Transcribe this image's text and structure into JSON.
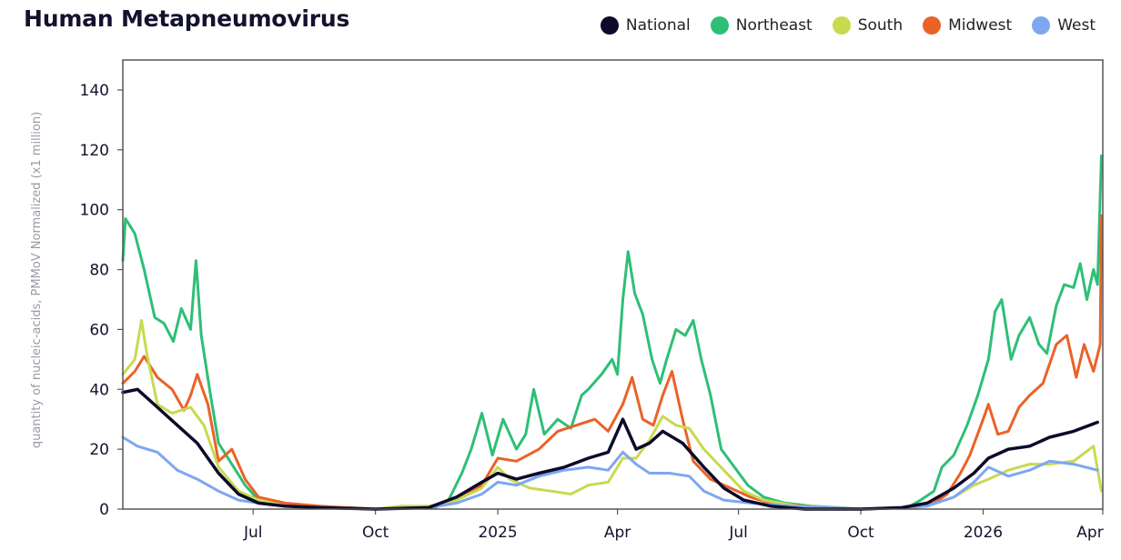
{
  "chart_data": {
    "type": "line",
    "title": "Human Metapneumovirus",
    "xlabel": "",
    "ylabel": "quantity of nucleic-acids, PMMoV Normalized (x1 million)",
    "ylim": [
      0,
      150
    ],
    "y_ticks": [
      0,
      20,
      40,
      60,
      80,
      100,
      120,
      140
    ],
    "x_range": [
      "2024-03-25",
      "2026-04-01"
    ],
    "x_ticks": [
      {
        "label": "Jul",
        "date": "2024-07-01"
      },
      {
        "label": "Oct",
        "date": "2024-10-01"
      },
      {
        "label": "2025",
        "date": "2025-01-01"
      },
      {
        "label": "Apr",
        "date": "2025-04-01"
      },
      {
        "label": "Jul",
        "date": "2025-07-01"
      },
      {
        "label": "Oct",
        "date": "2025-10-01"
      },
      {
        "label": "2026",
        "date": "2026-01-01"
      },
      {
        "label": "Apr",
        "date": "2026-04-01"
      }
    ],
    "legend_position": "top-right",
    "series": [
      {
        "name": "National",
        "color": "#0d0a2b",
        "points": [
          [
            "2024-03-25",
            39
          ],
          [
            "2024-04-05",
            40
          ],
          [
            "2024-04-20",
            34
          ],
          [
            "2024-05-05",
            28
          ],
          [
            "2024-05-20",
            22
          ],
          [
            "2024-06-05",
            12
          ],
          [
            "2024-06-20",
            5
          ],
          [
            "2024-07-05",
            2
          ],
          [
            "2024-07-25",
            1
          ],
          [
            "2024-08-20",
            0.5
          ],
          [
            "2024-10-01",
            0
          ],
          [
            "2024-11-10",
            0.5
          ],
          [
            "2024-12-01",
            4
          ],
          [
            "2024-12-20",
            9
          ],
          [
            "2025-01-01",
            12
          ],
          [
            "2025-01-15",
            10
          ],
          [
            "2025-02-01",
            12
          ],
          [
            "2025-02-20",
            14
          ],
          [
            "2025-03-10",
            17
          ],
          [
            "2025-03-25",
            19
          ],
          [
            "2025-04-05",
            30
          ],
          [
            "2025-04-15",
            20
          ],
          [
            "2025-04-25",
            22
          ],
          [
            "2025-05-05",
            26
          ],
          [
            "2025-05-20",
            22
          ],
          [
            "2025-06-05",
            14
          ],
          [
            "2025-06-20",
            7
          ],
          [
            "2025-07-05",
            3
          ],
          [
            "2025-07-25",
            1
          ],
          [
            "2025-08-20",
            0
          ],
          [
            "2025-10-01",
            0
          ],
          [
            "2025-11-01",
            0.5
          ],
          [
            "2025-11-20",
            2
          ],
          [
            "2025-12-10",
            7
          ],
          [
            "2025-12-25",
            12
          ],
          [
            "2026-01-05",
            17
          ],
          [
            "2026-01-20",
            20
          ],
          [
            "2026-02-05",
            21
          ],
          [
            "2026-02-20",
            24
          ],
          [
            "2026-03-10",
            26
          ],
          [
            "2026-03-28",
            29
          ]
        ]
      },
      {
        "name": "Northeast",
        "color": "#2ebf76",
        "points": [
          [
            "2024-03-25",
            83
          ],
          [
            "2024-03-27",
            97
          ],
          [
            "2024-04-03",
            92
          ],
          [
            "2024-04-10",
            80
          ],
          [
            "2024-04-18",
            64
          ],
          [
            "2024-04-25",
            62
          ],
          [
            "2024-05-02",
            56
          ],
          [
            "2024-05-08",
            67
          ],
          [
            "2024-05-15",
            60
          ],
          [
            "2024-05-19",
            83
          ],
          [
            "2024-05-23",
            58
          ],
          [
            "2024-05-30",
            38
          ],
          [
            "2024-06-05",
            22
          ],
          [
            "2024-06-15",
            15
          ],
          [
            "2024-06-25",
            8
          ],
          [
            "2024-07-05",
            3
          ],
          [
            "2024-07-25",
            1
          ],
          [
            "2024-08-20",
            0.5
          ],
          [
            "2024-10-01",
            0
          ],
          [
            "2024-11-15",
            0.5
          ],
          [
            "2024-11-25",
            3
          ],
          [
            "2024-12-05",
            12
          ],
          [
            "2024-12-12",
            20
          ],
          [
            "2024-12-20",
            32
          ],
          [
            "2024-12-28",
            18
          ],
          [
            "2025-01-05",
            30
          ],
          [
            "2025-01-15",
            20
          ],
          [
            "2025-01-22",
            25
          ],
          [
            "2025-01-28",
            40
          ],
          [
            "2025-02-05",
            25
          ],
          [
            "2025-02-15",
            30
          ],
          [
            "2025-02-25",
            27
          ],
          [
            "2025-03-05",
            38
          ],
          [
            "2025-03-10",
            40
          ],
          [
            "2025-03-20",
            45
          ],
          [
            "2025-03-28",
            50
          ],
          [
            "2025-04-01",
            45
          ],
          [
            "2025-04-05",
            70
          ],
          [
            "2025-04-09",
            86
          ],
          [
            "2025-04-14",
            72
          ],
          [
            "2025-04-20",
            65
          ],
          [
            "2025-04-27",
            50
          ],
          [
            "2025-05-03",
            42
          ],
          [
            "2025-05-08",
            50
          ],
          [
            "2025-05-15",
            60
          ],
          [
            "2025-05-22",
            58
          ],
          [
            "2025-05-28",
            63
          ],
          [
            "2025-06-03",
            50
          ],
          [
            "2025-06-10",
            38
          ],
          [
            "2025-06-18",
            20
          ],
          [
            "2025-06-28",
            14
          ],
          [
            "2025-07-08",
            8
          ],
          [
            "2025-07-20",
            4
          ],
          [
            "2025-08-05",
            2
          ],
          [
            "2025-08-25",
            1
          ],
          [
            "2025-09-15",
            0.5
          ],
          [
            "2025-10-01",
            0
          ],
          [
            "2025-11-05",
            0.5
          ],
          [
            "2025-11-15",
            3
          ],
          [
            "2025-11-25",
            6
          ],
          [
            "2025-12-01",
            14
          ],
          [
            "2025-12-10",
            18
          ],
          [
            "2025-12-20",
            28
          ],
          [
            "2025-12-28",
            38
          ],
          [
            "2026-01-05",
            50
          ],
          [
            "2026-01-10",
            66
          ],
          [
            "2026-01-15",
            70
          ],
          [
            "2026-01-22",
            50
          ],
          [
            "2026-01-28",
            58
          ],
          [
            "2026-02-05",
            64
          ],
          [
            "2026-02-12",
            55
          ],
          [
            "2026-02-18",
            52
          ],
          [
            "2026-02-25",
            68
          ],
          [
            "2026-03-03",
            75
          ],
          [
            "2026-03-10",
            74
          ],
          [
            "2026-03-15",
            82
          ],
          [
            "2026-03-20",
            70
          ],
          [
            "2026-03-25",
            80
          ],
          [
            "2026-03-28",
            75
          ],
          [
            "2026-03-31",
            118
          ]
        ]
      },
      {
        "name": "South",
        "color": "#c8da4f",
        "points": [
          [
            "2024-03-25",
            45
          ],
          [
            "2024-04-03",
            50
          ],
          [
            "2024-04-08",
            63
          ],
          [
            "2024-04-12",
            52
          ],
          [
            "2024-04-20",
            35
          ],
          [
            "2024-05-01",
            32
          ],
          [
            "2024-05-15",
            34
          ],
          [
            "2024-05-25",
            28
          ],
          [
            "2024-06-05",
            14
          ],
          [
            "2024-06-20",
            6
          ],
          [
            "2024-07-05",
            3
          ],
          [
            "2024-07-25",
            1
          ],
          [
            "2024-08-20",
            0.5
          ],
          [
            "2024-10-01",
            0
          ],
          [
            "2024-10-20",
            1
          ],
          [
            "2024-11-10",
            1
          ],
          [
            "2024-12-01",
            3
          ],
          [
            "2024-12-20",
            7
          ],
          [
            "2025-01-01",
            14
          ],
          [
            "2025-01-10",
            10
          ],
          [
            "2025-01-25",
            7
          ],
          [
            "2025-02-10",
            6
          ],
          [
            "2025-02-25",
            5
          ],
          [
            "2025-03-10",
            8
          ],
          [
            "2025-03-25",
            9
          ],
          [
            "2025-04-05",
            17
          ],
          [
            "2025-04-15",
            17
          ],
          [
            "2025-04-25",
            23
          ],
          [
            "2025-05-05",
            31
          ],
          [
            "2025-05-15",
            28
          ],
          [
            "2025-05-25",
            27
          ],
          [
            "2025-06-05",
            20
          ],
          [
            "2025-06-20",
            13
          ],
          [
            "2025-07-05",
            6
          ],
          [
            "2025-07-20",
            3
          ],
          [
            "2025-08-15",
            1
          ],
          [
            "2025-09-15",
            0.5
          ],
          [
            "2025-10-01",
            0
          ],
          [
            "2025-11-01",
            0.5
          ],
          [
            "2025-11-20",
            1
          ],
          [
            "2025-12-10",
            4
          ],
          [
            "2025-12-25",
            8
          ],
          [
            "2026-01-05",
            10
          ],
          [
            "2026-01-20",
            13
          ],
          [
            "2026-02-05",
            15
          ],
          [
            "2026-02-20",
            15
          ],
          [
            "2026-03-10",
            16
          ],
          [
            "2026-03-25",
            21
          ],
          [
            "2026-03-31",
            6
          ]
        ]
      },
      {
        "name": "Midwest",
        "color": "#ea6228",
        "points": [
          [
            "2024-03-25",
            42
          ],
          [
            "2024-04-03",
            46
          ],
          [
            "2024-04-10",
            51
          ],
          [
            "2024-04-20",
            44
          ],
          [
            "2024-05-01",
            40
          ],
          [
            "2024-05-10",
            33
          ],
          [
            "2024-05-15",
            38
          ],
          [
            "2024-05-20",
            45
          ],
          [
            "2024-05-28",
            35
          ],
          [
            "2024-06-05",
            16
          ],
          [
            "2024-06-15",
            20
          ],
          [
            "2024-06-25",
            10
          ],
          [
            "2024-07-05",
            4
          ],
          [
            "2024-07-25",
            2
          ],
          [
            "2024-08-20",
            1
          ],
          [
            "2024-10-01",
            0
          ],
          [
            "2024-11-10",
            0.5
          ],
          [
            "2024-11-25",
            2
          ],
          [
            "2024-12-05",
            4
          ],
          [
            "2024-12-20",
            8
          ],
          [
            "2025-01-01",
            17
          ],
          [
            "2025-01-15",
            16
          ],
          [
            "2025-02-01",
            20
          ],
          [
            "2025-02-15",
            26
          ],
          [
            "2025-03-01",
            28
          ],
          [
            "2025-03-15",
            30
          ],
          [
            "2025-03-25",
            26
          ],
          [
            "2025-04-05",
            35
          ],
          [
            "2025-04-12",
            44
          ],
          [
            "2025-04-20",
            30
          ],
          [
            "2025-04-28",
            28
          ],
          [
            "2025-05-05",
            38
          ],
          [
            "2025-05-12",
            46
          ],
          [
            "2025-05-20",
            30
          ],
          [
            "2025-05-28",
            16
          ],
          [
            "2025-06-10",
            10
          ],
          [
            "2025-06-25",
            7
          ],
          [
            "2025-07-10",
            4
          ],
          [
            "2025-07-25",
            2
          ],
          [
            "2025-08-20",
            1
          ],
          [
            "2025-10-01",
            0
          ],
          [
            "2025-11-10",
            0.5
          ],
          [
            "2025-11-25",
            2
          ],
          [
            "2025-12-05",
            5
          ],
          [
            "2025-12-15",
            12
          ],
          [
            "2025-12-22",
            18
          ],
          [
            "2026-01-01",
            30
          ],
          [
            "2026-01-05",
            35
          ],
          [
            "2026-01-12",
            25
          ],
          [
            "2026-01-20",
            26
          ],
          [
            "2026-01-28",
            34
          ],
          [
            "2026-02-05",
            38
          ],
          [
            "2026-02-15",
            42
          ],
          [
            "2026-02-25",
            55
          ],
          [
            "2026-03-05",
            58
          ],
          [
            "2026-03-12",
            44
          ],
          [
            "2026-03-18",
            55
          ],
          [
            "2026-03-25",
            46
          ],
          [
            "2026-03-30",
            55
          ],
          [
            "2026-03-31",
            98
          ]
        ]
      },
      {
        "name": "West",
        "color": "#7ea7f2",
        "points": [
          [
            "2024-03-25",
            24
          ],
          [
            "2024-04-05",
            21
          ],
          [
            "2024-04-20",
            19
          ],
          [
            "2024-05-05",
            13
          ],
          [
            "2024-05-20",
            10
          ],
          [
            "2024-06-05",
            6
          ],
          [
            "2024-06-20",
            3
          ],
          [
            "2024-07-05",
            2
          ],
          [
            "2024-07-25",
            1
          ],
          [
            "2024-08-20",
            0.5
          ],
          [
            "2024-10-01",
            0
          ],
          [
            "2024-11-10",
            0.5
          ],
          [
            "2024-12-01",
            2
          ],
          [
            "2024-12-20",
            5
          ],
          [
            "2025-01-01",
            9
          ],
          [
            "2025-01-15",
            8
          ],
          [
            "2025-02-01",
            11
          ],
          [
            "2025-02-20",
            13
          ],
          [
            "2025-03-10",
            14
          ],
          [
            "2025-03-25",
            13
          ],
          [
            "2025-04-05",
            19
          ],
          [
            "2025-04-15",
            15
          ],
          [
            "2025-04-25",
            12
          ],
          [
            "2025-05-10",
            12
          ],
          [
            "2025-05-25",
            11
          ],
          [
            "2025-06-05",
            6
          ],
          [
            "2025-06-20",
            3
          ],
          [
            "2025-07-10",
            2
          ],
          [
            "2025-08-10",
            1
          ],
          [
            "2025-09-10",
            0.5
          ],
          [
            "2025-10-01",
            0
          ],
          [
            "2025-11-01",
            0.5
          ],
          [
            "2025-11-20",
            1
          ],
          [
            "2025-12-10",
            4
          ],
          [
            "2025-12-25",
            9
          ],
          [
            "2026-01-05",
            14
          ],
          [
            "2026-01-20",
            11
          ],
          [
            "2026-02-05",
            13
          ],
          [
            "2026-02-20",
            16
          ],
          [
            "2026-03-10",
            15
          ],
          [
            "2026-03-28",
            13
          ]
        ]
      }
    ]
  }
}
